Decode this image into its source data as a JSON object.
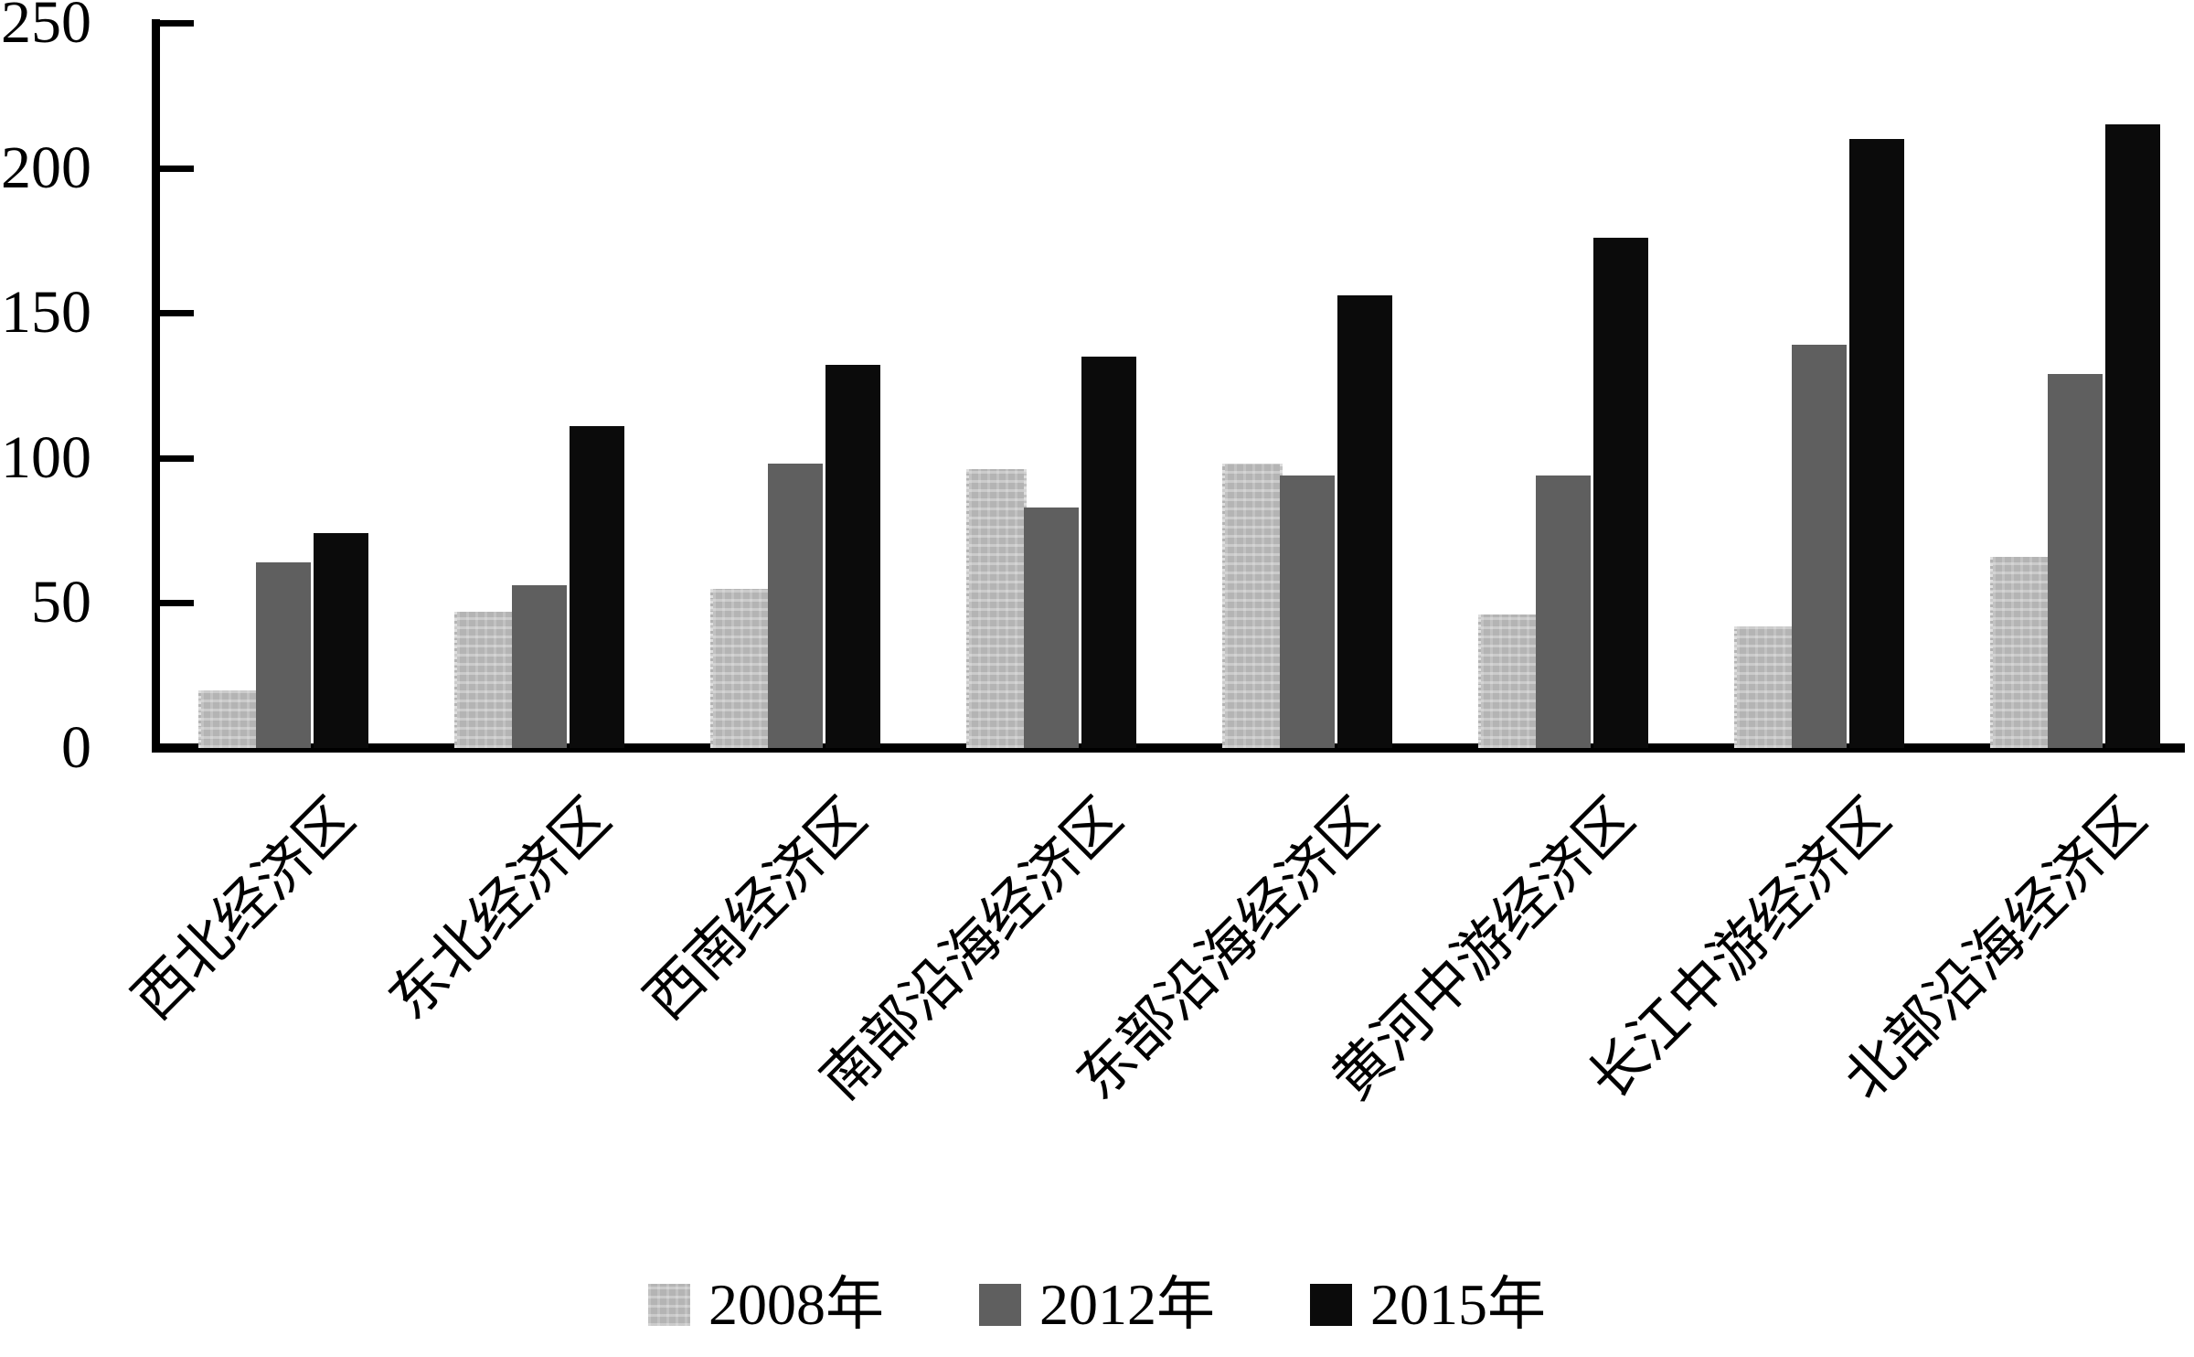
{
  "chart_data": {
    "type": "bar",
    "title": "",
    "xlabel": "",
    "ylabel": "",
    "categories": [
      "西北经济区",
      "东北经济区",
      "西南经济区",
      "南部沿海经济区",
      "东部沿海经济区",
      "黄河中游经济区",
      "长江中游经济区",
      "北部沿海经济区"
    ],
    "series": [
      {
        "name": "2008年",
        "color": "#b4b4b4",
        "pattern": "light-dotted-checker",
        "values": [
          20,
          47,
          55,
          96,
          98,
          46,
          42,
          66
        ]
      },
      {
        "name": "2012年",
        "color": "#5f5f5f",
        "pattern": "solid",
        "values": [
          64,
          56,
          98,
          83,
          94,
          94,
          139,
          129
        ]
      },
      {
        "name": "2015年",
        "color": "#0b0b0b",
        "pattern": "solid",
        "values": [
          74,
          111,
          132,
          135,
          156,
          176,
          210,
          215
        ]
      }
    ],
    "yticks": [
      0,
      50,
      100,
      150,
      200,
      250
    ],
    "ylim": [
      0,
      250
    ],
    "grid": false,
    "legend_position": "bottom-center",
    "axis_color": "#000000",
    "background_color": "#ffffff",
    "x_label_rotation_deg": 45
  }
}
